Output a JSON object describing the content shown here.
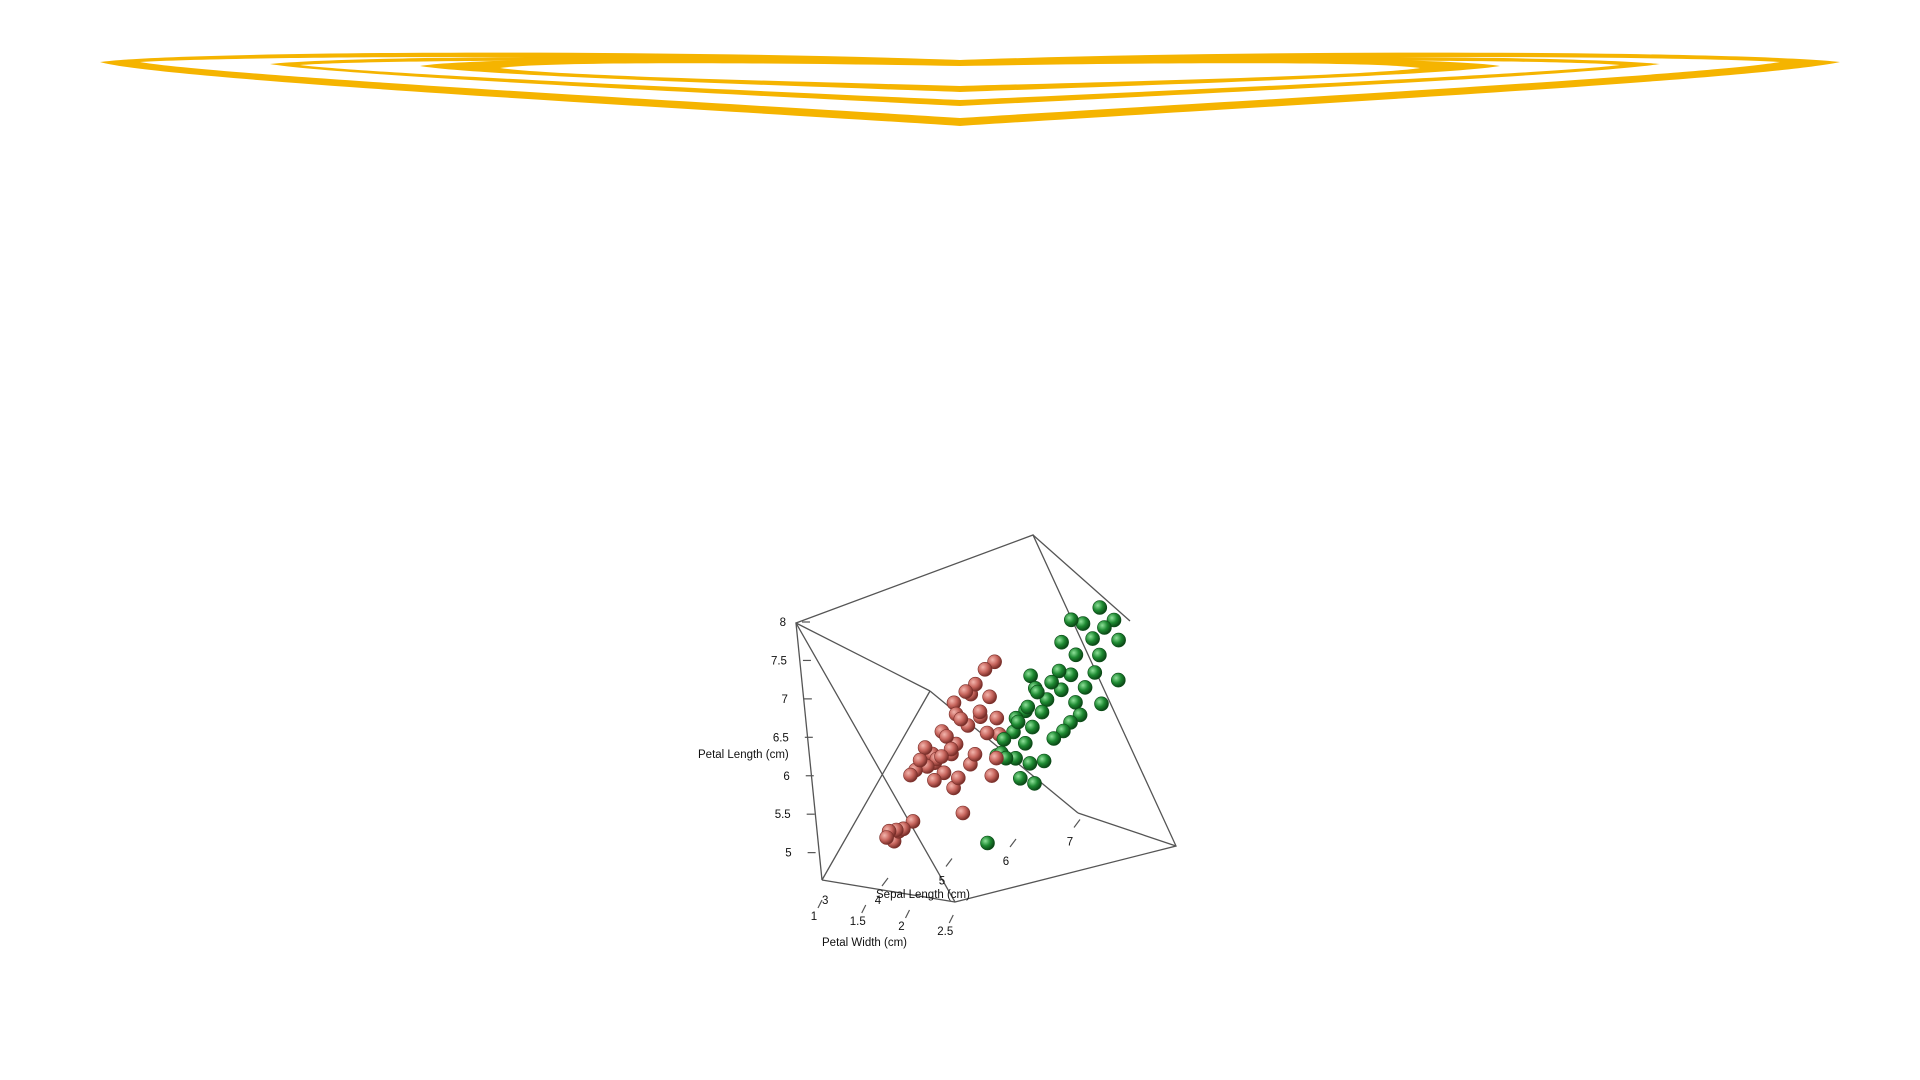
{
  "banner": {
    "decoration": "gold-heart-rings",
    "color": "#F5B400"
  },
  "chart_data": {
    "type": "scatter",
    "subtype": "3d-scatter",
    "title": "",
    "axes": {
      "x": {
        "label": "Sepal Length (cm)",
        "ticks": [
          "4",
          "5",
          "6",
          "7"
        ],
        "range": [
          4,
          8
        ]
      },
      "y": {
        "label": "Petal Width (cm)",
        "ticks": [
          "1",
          "1.5",
          "2",
          "2.5"
        ],
        "range": [
          1,
          2.6
        ]
      },
      "z": {
        "label": "Petal Length (cm)",
        "ticks": [
          "5",
          "5.5",
          "6",
          "6.5",
          "7",
          "7.5",
          "8"
        ],
        "range": [
          4.8,
          8
        ]
      },
      "extra_ticks": [
        "3"
      ]
    },
    "grid": false,
    "legend": "none",
    "series": [
      {
        "color": "#C8665E",
        "points": [
          [
            4.9,
            1.2,
            5.1
          ],
          [
            5.0,
            1.3,
            5.1
          ],
          [
            4.9,
            1.4,
            5.0
          ],
          [
            5.1,
            1.2,
            5.1
          ],
          [
            5.2,
            1.3,
            5.2
          ],
          [
            4.9,
            1.1,
            5.0
          ],
          [
            5.0,
            1.2,
            5.1
          ],
          [
            5.2,
            1.4,
            5.9
          ],
          [
            5.3,
            1.3,
            6.0
          ],
          [
            5.2,
            1.2,
            5.8
          ],
          [
            5.4,
            1.3,
            5.9
          ],
          [
            5.5,
            1.4,
            6.0
          ],
          [
            5.4,
            1.5,
            6.1
          ],
          [
            5.6,
            1.4,
            5.8
          ],
          [
            5.5,
            1.3,
            5.7
          ],
          [
            5.3,
            1.5,
            6.2
          ],
          [
            5.6,
            1.5,
            6.3
          ],
          [
            5.7,
            1.4,
            6.1
          ],
          [
            5.5,
            1.6,
            6.4
          ],
          [
            5.6,
            1.3,
            6.0
          ],
          [
            5.8,
            1.5,
            6.5
          ],
          [
            5.7,
            1.6,
            6.6
          ],
          [
            5.9,
            1.5,
            6.4
          ],
          [
            6.0,
            1.7,
            6.6
          ],
          [
            5.8,
            1.7,
            6.9
          ],
          [
            5.6,
            1.8,
            6.8
          ],
          [
            5.9,
            1.8,
            7.0
          ],
          [
            6.0,
            1.9,
            7.2
          ],
          [
            5.8,
            1.9,
            6.9
          ],
          [
            6.1,
            2.0,
            7.3
          ],
          [
            5.7,
            1.6,
            6.2
          ],
          [
            5.9,
            1.6,
            5.9
          ],
          [
            6.0,
            1.5,
            6.0
          ],
          [
            5.8,
            1.4,
            5.7
          ],
          [
            6.1,
            1.8,
            6.8
          ],
          [
            6.2,
            1.8,
            6.5
          ],
          [
            6.1,
            1.7,
            6.3
          ],
          [
            5.9,
            1.3,
            5.2
          ],
          [
            6.2,
            1.6,
            5.7
          ],
          [
            6.3,
            1.5,
            5.9
          ],
          [
            5.6,
            1.7,
            6.1
          ],
          [
            5.4,
            1.6,
            6.0
          ],
          [
            5.9,
            2.0,
            6.6
          ],
          [
            6.2,
            1.9,
            6.3
          ],
          [
            5.7,
            1.5,
            5.6
          ]
        ]
      },
      {
        "color": "#1E8A32",
        "points": [
          [
            6.3,
            1.8,
            6.2
          ],
          [
            6.4,
            1.9,
            6.3
          ],
          [
            6.5,
            1.8,
            6.4
          ],
          [
            6.4,
            2.0,
            6.5
          ],
          [
            6.6,
            1.9,
            6.6
          ],
          [
            6.5,
            2.1,
            6.6
          ],
          [
            6.7,
            2.0,
            6.8
          ],
          [
            6.8,
            2.1,
            6.7
          ],
          [
            6.6,
            2.2,
            6.9
          ],
          [
            6.9,
            2.0,
            6.9
          ],
          [
            6.7,
            1.8,
            6.3
          ],
          [
            6.8,
            1.9,
            6.5
          ],
          [
            7.0,
            2.1,
            6.8
          ],
          [
            7.1,
            2.2,
            7.0
          ],
          [
            6.9,
            2.3,
            7.1
          ],
          [
            7.2,
            2.1,
            6.6
          ],
          [
            7.3,
            2.2,
            6.8
          ],
          [
            7.0,
            1.8,
            6.1
          ],
          [
            7.2,
            1.9,
            6.3
          ],
          [
            7.4,
            2.3,
            7.0
          ],
          [
            7.1,
            2.4,
            7.3
          ],
          [
            7.3,
            2.5,
            7.5
          ],
          [
            7.5,
            2.4,
            7.6
          ],
          [
            7.6,
            2.5,
            7.7
          ],
          [
            7.4,
            2.5,
            7.9
          ],
          [
            7.7,
            2.4,
            7.4
          ],
          [
            7.2,
            2.4,
            7.7
          ],
          [
            7.0,
            2.5,
            7.8
          ],
          [
            6.9,
            2.4,
            7.5
          ],
          [
            7.5,
            2.2,
            7.2
          ],
          [
            6.5,
            1.7,
            5.9
          ],
          [
            6.7,
            1.7,
            5.8
          ],
          [
            6.6,
            1.6,
            5.6
          ],
          [
            6.8,
            1.6,
            5.5
          ],
          [
            6.4,
            1.6,
            5.9
          ],
          [
            6.3,
            1.7,
            6.0
          ],
          [
            6.6,
            1.8,
            6.1
          ],
          [
            6.2,
            1.8,
            6.0
          ],
          [
            7.6,
            2.0,
            6.5
          ],
          [
            7.8,
            2.1,
            6.8
          ],
          [
            6.0,
            2.0,
            4.9
          ],
          [
            7.1,
            1.9,
            6.2
          ],
          [
            6.9,
            1.7,
            5.8
          ],
          [
            7.3,
            2.0,
            6.4
          ],
          [
            6.5,
            2.3,
            7.1
          ]
        ]
      }
    ]
  }
}
